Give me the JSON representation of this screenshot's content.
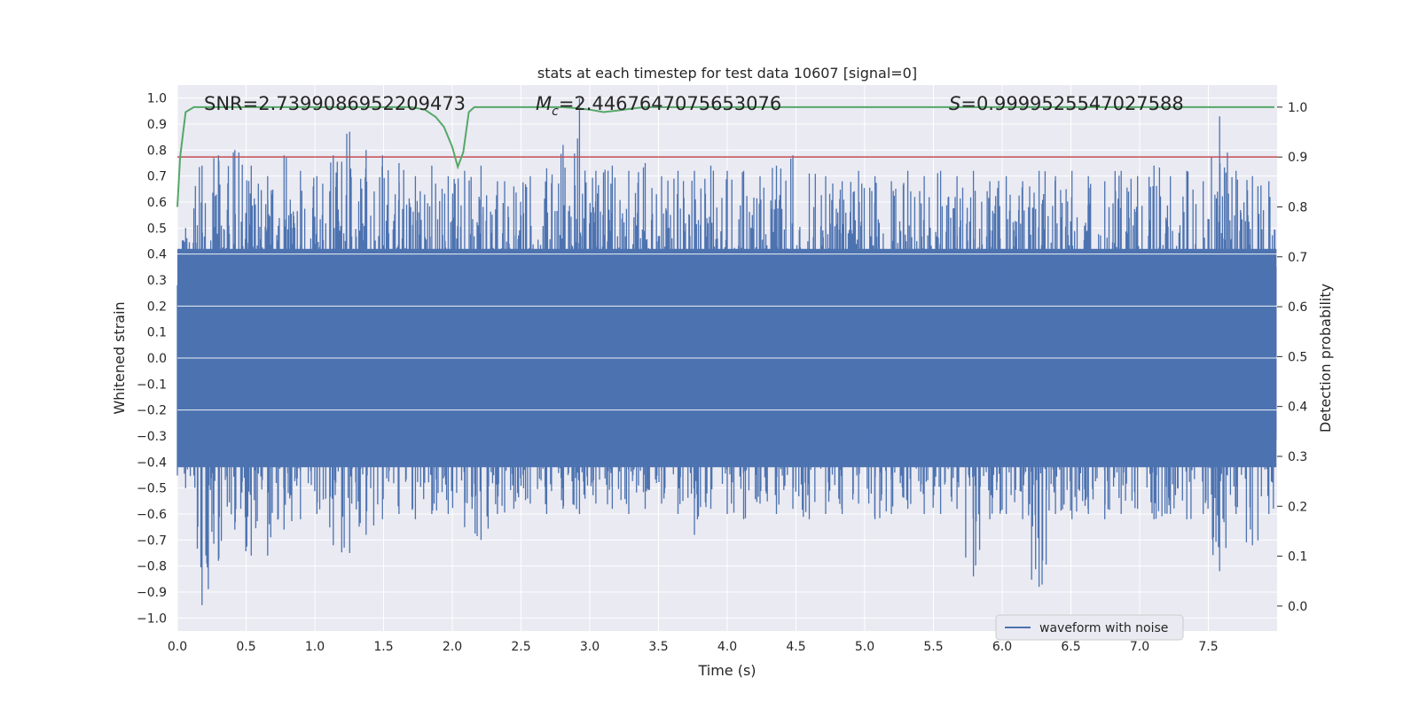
{
  "chart_data": {
    "type": "line",
    "title": "stats at each timestep for test data 10607 [signal=0]",
    "xlabel": "Time (s)",
    "ylabel": "Whitened strain",
    "y2label": "Detection probability",
    "xlim": [
      0.0,
      8.0
    ],
    "ylim": [
      -1.05,
      1.05
    ],
    "y2lim": [
      -0.05,
      1.0442
    ],
    "x_ticks": [
      "0.0",
      "0.5",
      "1.0",
      "1.5",
      "2.0",
      "2.5",
      "3.0",
      "3.5",
      "4.0",
      "4.5",
      "5.0",
      "5.5",
      "6.0",
      "6.5",
      "7.0",
      "7.5"
    ],
    "y_ticks": [
      "1.0",
      "0.9",
      "0.8",
      "0.7",
      "0.6",
      "0.5",
      "0.4",
      "0.3",
      "0.2",
      "0.1",
      "0.0",
      "−0.1",
      "−0.2",
      "−0.3",
      "−0.4",
      "−0.5",
      "−0.6",
      "−0.7",
      "−0.8",
      "−0.9",
      "−1.0"
    ],
    "y2_ticks": [
      "1.0",
      "0.9",
      "0.8",
      "0.7",
      "0.6",
      "0.5",
      "0.4",
      "0.3",
      "0.2",
      "0.1",
      "0.0"
    ],
    "annotations": {
      "snr": "SNR=2.7399086952209473",
      "mc_symbol": "M",
      "mc_sub": "c",
      "mc_value": "=2.4467647075653076",
      "s_symbol": "S",
      "s_value": "=0.9999525547027588"
    },
    "legend": {
      "label": "waveform with noise",
      "location": "lower right"
    },
    "threshold": {
      "value": 0.9,
      "color": "#c44e52"
    },
    "series": [
      {
        "name": "waveform with noise",
        "axis": "left",
        "color": "#4c72b0",
        "envelope_upper": [
          0.5,
          0.74,
          0.78,
          0.8,
          0.74,
          0.7,
          0.78,
          0.72,
          0.7,
          0.78,
          0.87,
          0.8,
          0.78,
          0.75,
          0.7,
          0.74,
          0.7,
          0.72,
          0.74,
          0.68,
          0.66,
          0.7,
          0.73,
          0.82,
          1.0,
          0.72,
          0.74,
          0.72,
          0.75,
          0.7,
          0.72,
          0.72,
          0.74,
          0.72,
          0.72,
          0.7,
          0.74,
          0.78,
          0.71,
          0.7,
          0.68,
          0.72,
          0.7,
          0.68,
          0.72,
          0.7,
          0.72,
          0.7,
          0.72,
          0.68,
          0.7,
          0.68,
          0.72,
          0.7,
          0.72,
          0.7,
          0.68,
          0.72,
          0.7,
          0.74,
          0.7,
          0.72,
          0.68,
          0.93,
          0.72,
          0.7,
          0.68
        ],
        "envelope_lower": [
          -0.5,
          -0.95,
          -0.78,
          -0.66,
          -0.76,
          -0.76,
          -0.66,
          -0.62,
          -0.6,
          -0.72,
          -0.75,
          -0.68,
          -0.62,
          -0.6,
          -0.62,
          -0.6,
          -0.6,
          -0.65,
          -0.7,
          -0.6,
          -0.58,
          -0.56,
          -0.6,
          -0.58,
          -0.6,
          -0.56,
          -0.58,
          -0.6,
          -0.58,
          -0.56,
          -0.6,
          -0.68,
          -0.58,
          -0.6,
          -0.62,
          -0.56,
          -0.6,
          -0.58,
          -0.62,
          -0.6,
          -0.6,
          -0.56,
          -0.62,
          -0.6,
          -0.58,
          -0.6,
          -0.6,
          -0.58,
          -0.84,
          -0.62,
          -0.6,
          -0.62,
          -0.88,
          -0.6,
          -0.62,
          -0.6,
          -0.62,
          -0.6,
          -0.58,
          -0.62,
          -0.6,
          -0.62,
          -0.6,
          -0.82,
          -0.6,
          -0.72,
          -0.6
        ]
      },
      {
        "name": "detection probability",
        "axis": "right",
        "color": "#55a868",
        "x": [
          0.0,
          0.02,
          0.06,
          0.12,
          0.2,
          1.0,
          1.7,
          1.8,
          1.88,
          1.94,
          2.0,
          2.04,
          2.08,
          2.12,
          2.16,
          2.2,
          2.4,
          2.8,
          2.9,
          3.0,
          3.1,
          3.2,
          3.3,
          3.4,
          3.5,
          4.0,
          5.0,
          6.0,
          7.0,
          7.98
        ],
        "values": [
          0.8,
          0.9,
          0.99,
          1.0,
          1.0,
          1.0,
          1.0,
          0.995,
          0.98,
          0.96,
          0.92,
          0.88,
          0.91,
          0.99,
          1.0,
          1.0,
          1.0,
          1.0,
          0.998,
          0.995,
          0.99,
          0.993,
          0.997,
          1.0,
          1.0,
          1.0,
          1.0,
          1.0,
          1.0,
          1.0
        ]
      }
    ]
  }
}
